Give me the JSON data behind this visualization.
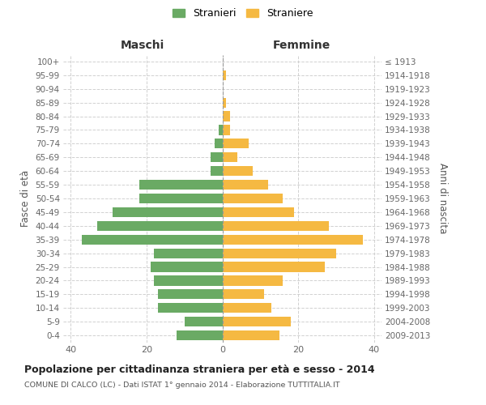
{
  "age_groups": [
    "0-4",
    "5-9",
    "10-14",
    "15-19",
    "20-24",
    "25-29",
    "30-34",
    "35-39",
    "40-44",
    "45-49",
    "50-54",
    "55-59",
    "60-64",
    "65-69",
    "70-74",
    "75-79",
    "80-84",
    "85-89",
    "90-94",
    "95-99",
    "100+"
  ],
  "birth_years": [
    "2009-2013",
    "2004-2008",
    "1999-2003",
    "1994-1998",
    "1989-1993",
    "1984-1988",
    "1979-1983",
    "1974-1978",
    "1969-1973",
    "1964-1968",
    "1959-1963",
    "1954-1958",
    "1949-1953",
    "1944-1948",
    "1939-1943",
    "1934-1938",
    "1929-1933",
    "1924-1928",
    "1919-1923",
    "1914-1918",
    "≤ 1913"
  ],
  "maschi": [
    12,
    10,
    17,
    17,
    18,
    19,
    18,
    37,
    33,
    29,
    22,
    22,
    3,
    3,
    2,
    1,
    0,
    0,
    0,
    0,
    0
  ],
  "femmine": [
    15,
    18,
    13,
    11,
    16,
    27,
    30,
    37,
    28,
    19,
    16,
    12,
    8,
    4,
    7,
    2,
    2,
    1,
    0,
    1,
    0
  ],
  "maschi_color": "#6aaa64",
  "femmine_color": "#f5b942",
  "background_color": "#ffffff",
  "grid_color": "#cccccc",
  "title": "Popolazione per cittadinanza straniera per età e sesso - 2014",
  "subtitle": "COMUNE DI CALCO (LC) - Dati ISTAT 1° gennaio 2014 - Elaborazione TUTTITALIA.IT",
  "xlabel_left": "Maschi",
  "xlabel_right": "Femmine",
  "ylabel_left": "Fasce di età",
  "ylabel_right": "Anni di nascita",
  "legend_stranieri": "Stranieri",
  "legend_straniere": "Straniere",
  "xlim": 42
}
